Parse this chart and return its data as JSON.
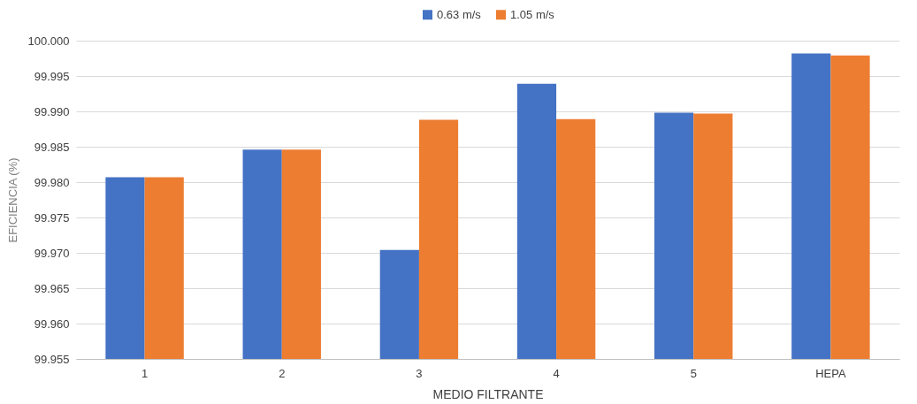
{
  "chart_data": {
    "type": "bar",
    "xlabel": "MEDIO FILTRANTE",
    "ylabel": "EFICIENCIA (%)",
    "categories": [
      "1",
      "2",
      "3",
      "4",
      "5",
      "HEPA"
    ],
    "series": [
      {
        "name": "0.63 m/s",
        "color": "#4472c4",
        "values": [
          99.9807,
          99.9846,
          99.9704,
          99.9939,
          99.9898,
          99.9982
        ]
      },
      {
        "name": "1.05 m/s",
        "color": "#ed7d31",
        "values": [
          99.9807,
          99.9846,
          99.9888,
          99.9889,
          99.9897,
          99.9979
        ]
      }
    ],
    "ylim": [
      99.955,
      100.0
    ],
    "yticks": [
      {
        "value": 99.955,
        "label": "99.955"
      },
      {
        "value": 99.96,
        "label": "99.960"
      },
      {
        "value": 99.965,
        "label": "99.965"
      },
      {
        "value": 99.97,
        "label": "99.970"
      },
      {
        "value": 99.975,
        "label": "99.975"
      },
      {
        "value": 99.98,
        "label": "99.980"
      },
      {
        "value": 99.985,
        "label": "99.985"
      },
      {
        "value": 99.99,
        "label": "99.990"
      },
      {
        "value": 99.995,
        "label": "99.995"
      },
      {
        "value": 100.0,
        "label": "100.000"
      }
    ],
    "grid": "y",
    "legend": "top"
  }
}
